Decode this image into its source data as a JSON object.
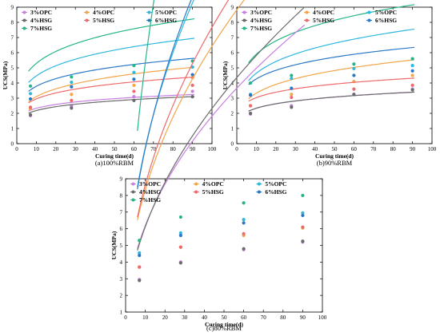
{
  "chart_data": [
    {
      "type": "scatter",
      "subplot": "a",
      "caption": "(a)100%RBM",
      "xlabel": "Curing time(d)",
      "ylabel": "UCS(MPa)",
      "xlim": [
        0,
        100
      ],
      "ylim": [
        0,
        9
      ],
      "xticks": [
        0,
        10,
        20,
        30,
        40,
        50,
        60,
        70,
        80,
        90,
        100
      ],
      "yticks": [
        0,
        1,
        2,
        3,
        4,
        5,
        6,
        7,
        8,
        9
      ],
      "grid": false,
      "legend_position": "top-left",
      "legend_columns": 3,
      "x": [
        7,
        28,
        60,
        90
      ],
      "series": [
        {
          "name": "3%OPC",
          "color": "#c77fe0",
          "values": [
            1.85,
            2.5,
            3.1,
            3.45
          ],
          "fit": [
            1.65,
            0.15
          ]
        },
        {
          "name": "4%OPC",
          "color": "#f2a54a",
          "values": [
            2.3,
            3.25,
            3.85,
            4.35
          ],
          "fit": [
            1.87,
            0.22
          ]
        },
        {
          "name": "5%OPC",
          "color": "#2fb7dd",
          "values": [
            3.3,
            4.05,
            4.7,
            5.05
          ],
          "fit": [
            2.82,
            0.2
          ]
        },
        {
          "name": "4%HSG",
          "color": "#6b6b6b",
          "values": [
            1.9,
            2.35,
            2.85,
            3.1
          ],
          "fit": [
            1.51,
            0.16
          ]
        },
        {
          "name": "5%HSG",
          "color": "#ee6a6a",
          "values": [
            2.4,
            2.85,
            3.45,
            3.85
          ],
          "fit": [
            1.95,
            0.18
          ]
        },
        {
          "name": "6%HSG",
          "color": "#2a78c8",
          "values": [
            2.95,
            3.75,
            4.25,
            4.55
          ],
          "fit": [
            2.5,
            0.18
          ]
        },
        {
          "name": "7%HSG",
          "color": "#26b58a",
          "values": [
            3.8,
            4.4,
            5.15,
            5.45
          ],
          "fit": [
            3.34,
            0.2
          ]
        }
      ]
    },
    {
      "type": "scatter",
      "subplot": "b",
      "caption": "(b)90%RBM",
      "xlabel": "Curing time(d)",
      "ylabel": "UCS(MPa)",
      "xlim": [
        0,
        100
      ],
      "ylim": [
        0,
        9
      ],
      "xticks": [
        0,
        10,
        20,
        30,
        40,
        50,
        60,
        70,
        80,
        90,
        100
      ],
      "yticks": [
        0,
        1,
        2,
        3,
        4,
        5,
        6,
        7,
        8,
        9
      ],
      "grid": false,
      "legend_position": "top-left",
      "legend_columns": 3,
      "x": [
        7,
        28,
        60,
        90
      ],
      "series": [
        {
          "name": "3%OPC",
          "color": "#c77fe0",
          "values": [
            1.95,
            2.5,
            3.25,
            3.6
          ],
          "fit": [
            1.58,
            0.17
          ]
        },
        {
          "name": "4%OPC",
          "color": "#f2a54a",
          "values": [
            2.5,
            3.25,
            4.1,
            4.5
          ],
          "fit": [
            1.96,
            0.23
          ]
        },
        {
          "name": "5%OPC",
          "color": "#2fb7dd",
          "values": [
            3.25,
            4.3,
            4.95,
            5.15
          ],
          "fit": [
            2.8,
            0.22
          ]
        },
        {
          "name": "4%HSG",
          "color": "#6b6b6b",
          "values": [
            2.0,
            2.4,
            3.25,
            3.55
          ],
          "fit": [
            1.58,
            0.17
          ]
        },
        {
          "name": "5%HSG",
          "color": "#ee6a6a",
          "values": [
            2.5,
            3.05,
            3.6,
            3.85
          ],
          "fit": [
            2.1,
            0.16
          ]
        },
        {
          "name": "6%HSG",
          "color": "#2a78c8",
          "values": [
            3.2,
            3.65,
            4.5,
            4.8
          ],
          "fit": [
            2.82,
            0.18
          ]
        },
        {
          "name": "7%HSG",
          "color": "#26b58a",
          "values": [
            4.0,
            4.5,
            5.25,
            5.6
          ],
          "fit": [
            3.72,
            0.2
          ]
        }
      ]
    },
    {
      "type": "scatter",
      "subplot": "c",
      "caption": "(c)80%RBM",
      "xlabel": "Curing time(d)",
      "ylabel": "UCS(MPa)",
      "xlim": [
        0,
        100
      ],
      "ylim": [
        1,
        9
      ],
      "xticks": [
        0,
        10,
        20,
        30,
        40,
        50,
        60,
        70,
        80,
        90,
        100
      ],
      "yticks": [
        1,
        2,
        3,
        4,
        5,
        6,
        7,
        8,
        9
      ],
      "grid": false,
      "legend_position": "top-left",
      "legend_columns": 3,
      "x": [
        7,
        28,
        60,
        90
      ],
      "series": [
        {
          "name": "3%OPC",
          "color": "#c77fe0",
          "values": [
            2.95,
            4.0,
            4.75,
            5.2
          ],
          "fit": [
            2.0,
            0.49
          ]
        },
        {
          "name": "4%OPC",
          "color": "#f2a54a",
          "values": [
            3.7,
            4.9,
            5.6,
            6.05
          ],
          "fit": [
            2.76,
            0.48
          ]
        },
        {
          "name": "5%OPC",
          "color": "#2fb7dd",
          "values": [
            4.55,
            5.75,
            6.55,
            6.95
          ],
          "fit": [
            3.6,
            0.48
          ]
        },
        {
          "name": "4%HSG",
          "color": "#6b6b6b",
          "values": [
            2.9,
            3.95,
            4.8,
            5.25
          ],
          "fit": [
            1.85,
            0.52
          ]
        },
        {
          "name": "5%HSG",
          "color": "#ee6a6a",
          "values": [
            3.7,
            4.9,
            5.7,
            6.1
          ],
          "fit": [
            2.73,
            0.5
          ]
        },
        {
          "name": "6%HSG",
          "color": "#2a78c8",
          "values": [
            4.4,
            5.6,
            6.35,
            6.8
          ],
          "fit": [
            3.42,
            0.5
          ]
        },
        {
          "name": "7%HSG",
          "color": "#26b58a",
          "values": [
            5.3,
            6.7,
            7.55,
            8.0
          ],
          "fit": [
            4.2,
            0.58
          ]
        }
      ]
    }
  ]
}
